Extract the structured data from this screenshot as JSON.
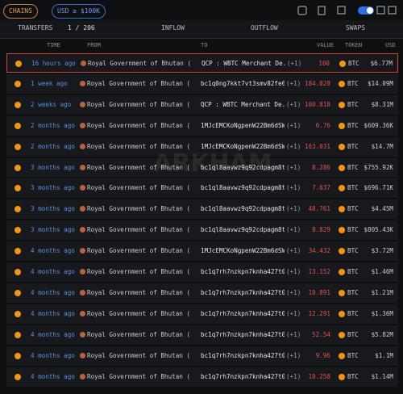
{
  "filters": {
    "chains": "CHAINS",
    "usd": "USD ≥ $100K"
  },
  "tabs": {
    "transfers": "TRANSFERS",
    "pagination": "1 / 206",
    "inflow": "INFLOW",
    "outflow": "OUTFLOW",
    "swaps": "SWAPS"
  },
  "columns": {
    "time": "TIME",
    "from": "FROM",
    "to": "TO",
    "value": "VALUE",
    "token": "TOKEN",
    "usd": "USD"
  },
  "watermark": "ARKHAM",
  "table": {
    "rows": [
      [
        "16 hours ago",
        "Royal Government of Bhutan (",
        "QCP : WBTC Merchant De...",
        "(+1)",
        "100",
        "BTC",
        "$6.77M"
      ],
      [
        "1 week ago",
        "Royal Government of Bhutan (",
        "bc1q0ng7kkt7vt3smv82fe63...",
        "(+1)",
        "184.028",
        "BTC",
        "$14.09M"
      ],
      [
        "2 weeks ago",
        "Royal Government of Bhutan (",
        "QCP : WBTC Merchant De...",
        "(+1)",
        "100.818",
        "BTC",
        "$8.31M"
      ],
      [
        "2 months ago",
        "Royal Government of Bhutan (",
        "1MJcEMCKoNgpenW22Bm6dSWo...",
        "(+1)",
        "6.76",
        "BTC",
        "$609.36K"
      ],
      [
        "2 months ago",
        "Royal Government of Bhutan (",
        "1MJcEMCKoNgpenW22Bm6dSWo...",
        "(+1)",
        "163.031",
        "BTC",
        "$14.7M"
      ],
      [
        "3 months ago",
        "Royal Government of Bhutan (",
        "bc1ql8aavwz9q92cdpagm8t0...",
        "(+1)",
        "8.286",
        "BTC",
        "$755.92K"
      ],
      [
        "3 months ago",
        "Royal Government of Bhutan (",
        "bc1ql8aavwz9q92cdpagm8t0...",
        "(+1)",
        "7.637",
        "BTC",
        "$696.71K"
      ],
      [
        "3 months ago",
        "Royal Government of Bhutan (",
        "bc1ql8aavwz9q92cdpagm8t0...",
        "(+1)",
        "48.761",
        "BTC",
        "$4.45M"
      ],
      [
        "3 months ago",
        "Royal Government of Bhutan (",
        "bc1ql8aavwz9q92cdpagm8t0...",
        "(+1)",
        "8.829",
        "BTC",
        "$805.43K"
      ],
      [
        "4 months ago",
        "Royal Government of Bhutan (",
        "1MJcEMCKoNgpenW22Bm6dSWo...",
        "(+1)",
        "34.432",
        "BTC",
        "$3.72M"
      ],
      [
        "4 months ago",
        "Royal Government of Bhutan (",
        "bc1q7rh7nzkpn7knha427t05...",
        "(+1)",
        "13.152",
        "BTC",
        "$1.46M"
      ],
      [
        "4 months ago",
        "Royal Government of Bhutan (",
        "bc1q7rh7nzkpn7knha427t05...",
        "(+1)",
        "10.891",
        "BTC",
        "$1.21M"
      ],
      [
        "4 months ago",
        "Royal Government of Bhutan (",
        "bc1q7rh7nzkpn7knha427t05...",
        "(+1)",
        "12.291",
        "BTC",
        "$1.36M"
      ],
      [
        "4 months ago",
        "Royal Government of Bhutan (",
        "bc1q7rh7nzkpn7knha427t05...",
        "(+1)",
        "52.54",
        "BTC",
        "$5.82M"
      ],
      [
        "4 months ago",
        "Royal Government of Bhutan (",
        "bc1q7rh7nzkpn7knha427t05...",
        "(+1)",
        "9.96",
        "BTC",
        "$1.1M"
      ],
      [
        "4 months ago",
        "Royal Government of Bhutan (",
        "bc1q7rh7nzkpn7knha427t05...",
        "(+1)",
        "10.258",
        "BTC",
        "$1.14M"
      ]
    ]
  }
}
